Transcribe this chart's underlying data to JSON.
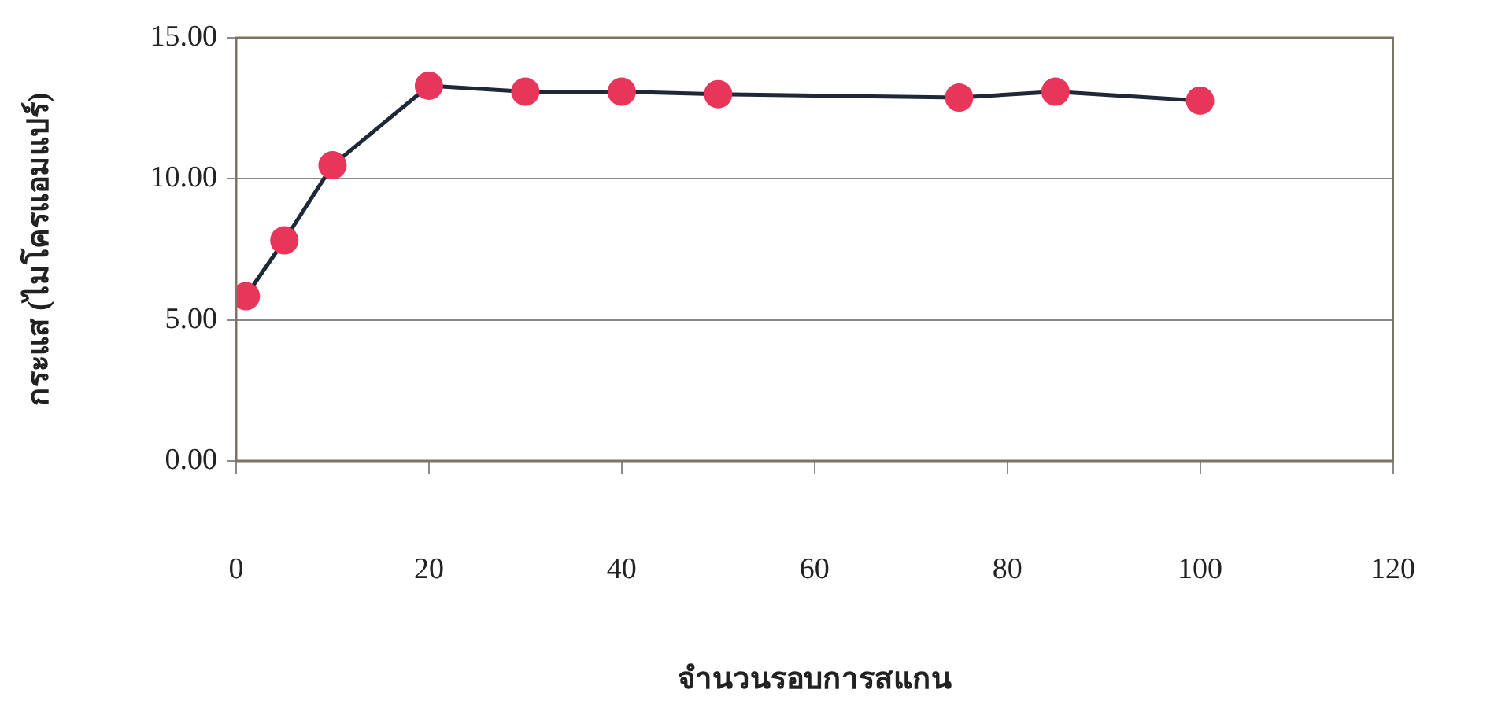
{
  "chart_data": {
    "type": "line",
    "xlabel": "จำนวนรอบการสแกน",
    "ylabel": "กระแส (ไมโครแอมแปร์)",
    "x": [
      1,
      5,
      10,
      20,
      30,
      40,
      50,
      75,
      85,
      100
    ],
    "series": [
      {
        "color": "#e8365a",
        "values": [
          5.84,
          7.82,
          10.48,
          13.3,
          13.09,
          13.09,
          13.0,
          12.88,
          13.09,
          12.77
        ]
      }
    ],
    "xlim": [
      0,
      120
    ],
    "xticks": [
      0,
      20,
      40,
      60,
      80,
      100,
      120
    ],
    "ylim": [
      0,
      15
    ],
    "yticks": [
      {
        "value": 0,
        "label": "0.00"
      },
      {
        "value": 5,
        "label": "5.00"
      },
      {
        "value": 10,
        "label": "10.00"
      },
      {
        "value": 15,
        "label": "15.00"
      }
    ],
    "grid": "y",
    "marker": "circle",
    "line_style": "solid"
  }
}
